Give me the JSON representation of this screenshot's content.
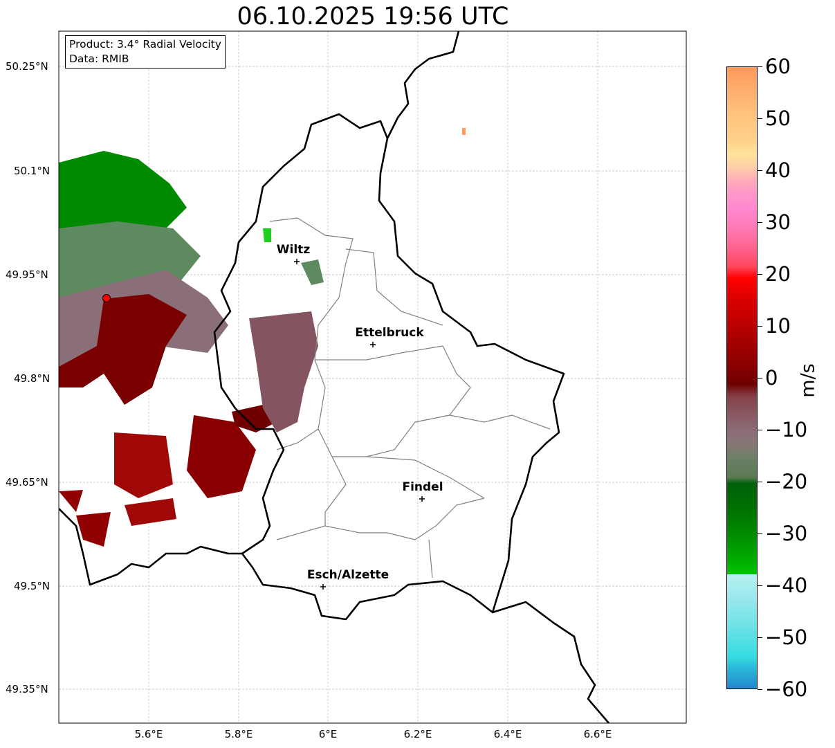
{
  "title": "06.10.2025 19:56 UTC",
  "info": {
    "product": "Product: 3.4° Radial Velocity",
    "data": "Data: RMIB"
  },
  "x_ticks": [
    "5.6°E",
    "5.8°E",
    "6°E",
    "6.2°E",
    "6.4°E",
    "6.6°E"
  ],
  "y_ticks": [
    "50.25°N",
    "50.1°N",
    "49.95°N",
    "49.8°N",
    "49.65°N",
    "49.5°N",
    "49.35°N"
  ],
  "cities": [
    "Wiltz",
    "Ettelbruck",
    "Findel",
    "Esch/Alzette"
  ],
  "colorbar": {
    "label": "m/s",
    "ticks": [
      "60",
      "50",
      "40",
      "30",
      "20",
      "10",
      "0",
      "−10",
      "−20",
      "−30",
      "−40",
      "−50",
      "−60"
    ],
    "range": [
      -60,
      60
    ]
  },
  "colors": {
    "radar_site": "#ff0000",
    "border": "#000000",
    "canton": "#808080"
  }
}
